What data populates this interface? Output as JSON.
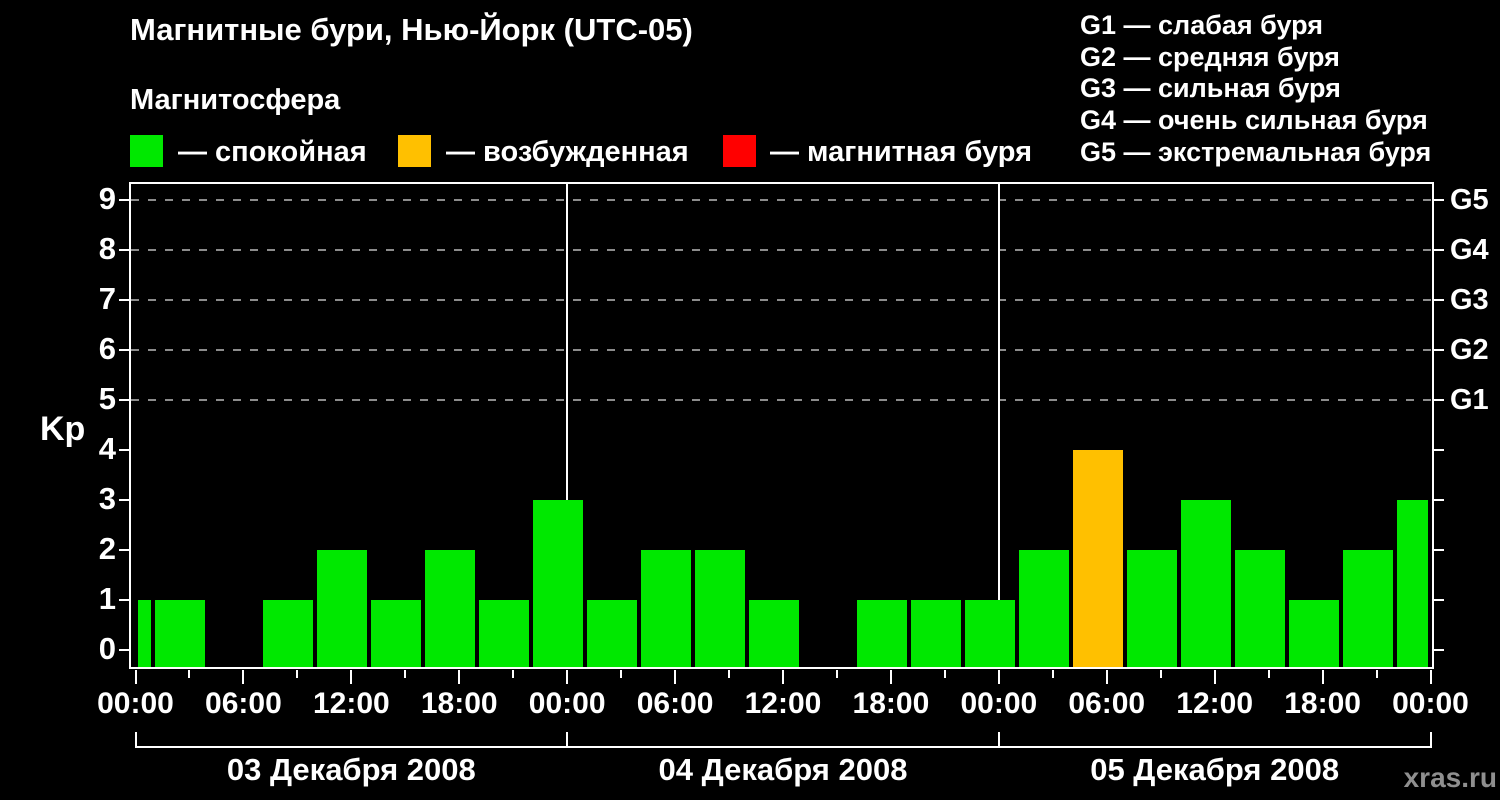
{
  "header": {
    "title": "Магнитные бури, Нью-Йорк (UTC-05)",
    "subtitle": "Магнитосфера"
  },
  "legend": {
    "items": [
      {
        "name": "quiet",
        "label": "— спокойная",
        "color": "#00e800"
      },
      {
        "name": "excited",
        "label": "— возбужденная",
        "color": "#ffc000"
      },
      {
        "name": "storm",
        "label": "— магнитная буря",
        "color": "#ff0000"
      }
    ]
  },
  "storm_scale": {
    "lines": [
      "G1 — слабая буря",
      "G2 — средняя буря",
      "G3 — сильная буря",
      "G4 — очень сильная буря",
      "G5 — экстремальная буря"
    ]
  },
  "watermark": "xras.ru",
  "chart_data": {
    "type": "bar",
    "title": "Магнитные бури, Нью-Йорк (UTC-05)",
    "ylabel": "Kp",
    "ylim": [
      0,
      9
    ],
    "y_ticks": [
      0,
      1,
      2,
      3,
      4,
      5,
      6,
      7,
      8,
      9
    ],
    "grid_kp_levels": [
      5,
      6,
      7,
      8,
      9
    ],
    "right_axis": [
      {
        "kp": 5,
        "label": "G1"
      },
      {
        "kp": 6,
        "label": "G2"
      },
      {
        "kp": 7,
        "label": "G3"
      },
      {
        "kp": 8,
        "label": "G4"
      },
      {
        "kp": 9,
        "label": "G5"
      }
    ],
    "x_total_hours": 72,
    "x_minor_tick_h": 3,
    "x_major_tick_h": 6,
    "x_tick_labels": [
      "00:00",
      "06:00",
      "12:00",
      "18:00",
      "00:00",
      "06:00",
      "12:00",
      "18:00",
      "00:00",
      "06:00",
      "12:00",
      "18:00",
      "00:00"
    ],
    "days": [
      {
        "label": "03 Декабря 2008",
        "start_h": 0,
        "end_h": 24
      },
      {
        "label": "04 Декабря 2008",
        "start_h": 24,
        "end_h": 48
      },
      {
        "label": "05 Декабря 2008",
        "start_h": 48,
        "end_h": 72
      }
    ],
    "series": [
      {
        "name": "Kp",
        "bins": [
          {
            "start_h": 0,
            "end_h": 1,
            "kp": 1
          },
          {
            "start_h": 1,
            "end_h": 4,
            "kp": 1
          },
          {
            "start_h": 4,
            "end_h": 7,
            "kp": 0
          },
          {
            "start_h": 7,
            "end_h": 10,
            "kp": 1
          },
          {
            "start_h": 10,
            "end_h": 13,
            "kp": 2
          },
          {
            "start_h": 13,
            "end_h": 16,
            "kp": 1
          },
          {
            "start_h": 16,
            "end_h": 19,
            "kp": 2
          },
          {
            "start_h": 19,
            "end_h": 22,
            "kp": 1
          },
          {
            "start_h": 22,
            "end_h": 25,
            "kp": 3
          },
          {
            "start_h": 25,
            "end_h": 28,
            "kp": 1
          },
          {
            "start_h": 28,
            "end_h": 31,
            "kp": 2
          },
          {
            "start_h": 31,
            "end_h": 34,
            "kp": 2
          },
          {
            "start_h": 34,
            "end_h": 37,
            "kp": 1
          },
          {
            "start_h": 37,
            "end_h": 40,
            "kp": 0
          },
          {
            "start_h": 40,
            "end_h": 43,
            "kp": 1
          },
          {
            "start_h": 43,
            "end_h": 46,
            "kp": 1
          },
          {
            "start_h": 46,
            "end_h": 49,
            "kp": 1
          },
          {
            "start_h": 49,
            "end_h": 52,
            "kp": 2
          },
          {
            "start_h": 52,
            "end_h": 55,
            "kp": 4
          },
          {
            "start_h": 55,
            "end_h": 58,
            "kp": 2
          },
          {
            "start_h": 58,
            "end_h": 61,
            "kp": 3
          },
          {
            "start_h": 61,
            "end_h": 64,
            "kp": 2
          },
          {
            "start_h": 64,
            "end_h": 67,
            "kp": 1
          },
          {
            "start_h": 67,
            "end_h": 70,
            "kp": 2
          },
          {
            "start_h": 70,
            "end_h": 72,
            "kp": 3
          }
        ]
      }
    ],
    "colors": {
      "kp_le_3": "#00e800",
      "kp_4": "#ffc000",
      "kp_ge_5": "#ff0000"
    }
  }
}
